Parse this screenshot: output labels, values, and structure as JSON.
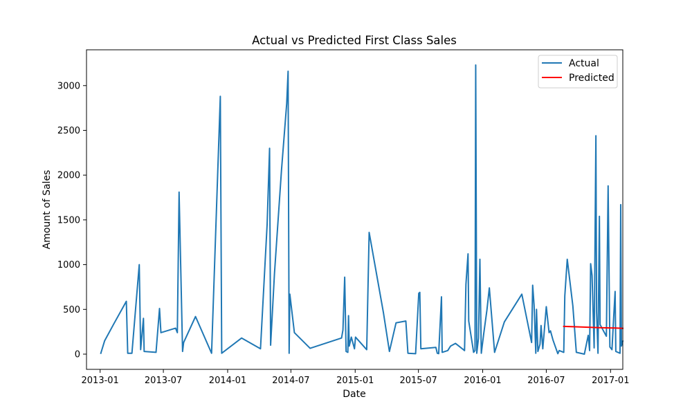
{
  "chart_data": {
    "type": "line",
    "title": "Actual vs Predicted First Class Sales",
    "xlabel": "Date",
    "ylabel": "Amount of Sales",
    "x_axis_type": "date",
    "xlim": [
      "2012-11-23",
      "2017-02-05"
    ],
    "ylim": [
      -170,
      3400
    ],
    "x_ticks": [
      "2013-01-01",
      "2013-07-01",
      "2014-01-01",
      "2014-07-01",
      "2015-01-01",
      "2015-07-01",
      "2016-01-01",
      "2016-07-01",
      "2017-01-01"
    ],
    "x_tick_labels": [
      "2013-01",
      "2013-07",
      "2014-01",
      "2014-07",
      "2015-01",
      "2015-07",
      "2016-01",
      "2016-07",
      "2017-01"
    ],
    "y_ticks": [
      0,
      500,
      1000,
      1500,
      2000,
      2500,
      3000
    ],
    "y_tick_labels": [
      "0",
      "500",
      "1000",
      "1500",
      "2000",
      "2500",
      "3000"
    ],
    "grid": false,
    "legend": {
      "position": "top-right",
      "entries": [
        "Actual",
        "Predicted"
      ]
    },
    "series": [
      {
        "name": "Actual",
        "color": "#1f77b4",
        "points": [
          [
            "2013-01-03",
            10
          ],
          [
            "2013-01-14",
            150
          ],
          [
            "2013-02-08",
            330
          ],
          [
            "2013-03-17",
            590
          ],
          [
            "2013-03-21",
            10
          ],
          [
            "2013-04-02",
            10
          ],
          [
            "2013-04-23",
            1000
          ],
          [
            "2013-04-27",
            50
          ],
          [
            "2013-05-05",
            400
          ],
          [
            "2013-05-07",
            30
          ],
          [
            "2013-06-10",
            20
          ],
          [
            "2013-06-20",
            510
          ],
          [
            "2013-06-24",
            240
          ],
          [
            "2013-08-05",
            290
          ],
          [
            "2013-08-10",
            240
          ],
          [
            "2013-08-15",
            1810
          ],
          [
            "2013-08-25",
            30
          ],
          [
            "2013-08-28",
            130
          ],
          [
            "2013-10-01",
            420
          ],
          [
            "2013-11-16",
            10
          ],
          [
            "2013-12-11",
            2880
          ],
          [
            "2013-12-15",
            10
          ],
          [
            "2014-02-10",
            180
          ],
          [
            "2014-04-05",
            60
          ],
          [
            "2014-04-24",
            1450
          ],
          [
            "2014-05-01",
            2300
          ],
          [
            "2014-05-04",
            100
          ],
          [
            "2014-05-15",
            900
          ],
          [
            "2014-06-04",
            2050
          ],
          [
            "2014-06-19",
            2800
          ],
          [
            "2014-06-23",
            3160
          ],
          [
            "2014-06-26",
            10
          ],
          [
            "2014-06-28",
            670
          ],
          [
            "2014-07-11",
            240
          ],
          [
            "2014-08-25",
            65
          ],
          [
            "2014-11-23",
            180
          ],
          [
            "2014-11-27",
            270
          ],
          [
            "2014-12-02",
            860
          ],
          [
            "2014-12-06",
            30
          ],
          [
            "2014-12-11",
            20
          ],
          [
            "2014-12-13",
            430
          ],
          [
            "2014-12-15",
            90
          ],
          [
            "2014-12-21",
            190
          ],
          [
            "2014-12-30",
            60
          ],
          [
            "2015-01-02",
            190
          ],
          [
            "2015-02-03",
            50
          ],
          [
            "2015-02-10",
            1360
          ],
          [
            "2015-03-23",
            460
          ],
          [
            "2015-04-09",
            30
          ],
          [
            "2015-04-28",
            350
          ],
          [
            "2015-05-26",
            370
          ],
          [
            "2015-06-01",
            10
          ],
          [
            "2015-06-23",
            5
          ],
          [
            "2015-07-02",
            680
          ],
          [
            "2015-07-05",
            690
          ],
          [
            "2015-07-08",
            60
          ],
          [
            "2015-08-20",
            75
          ],
          [
            "2015-08-24",
            10
          ],
          [
            "2015-08-28",
            5
          ],
          [
            "2015-09-05",
            640
          ],
          [
            "2015-09-07",
            20
          ],
          [
            "2015-09-23",
            40
          ],
          [
            "2015-10-01",
            90
          ],
          [
            "2015-10-15",
            120
          ],
          [
            "2015-11-10",
            40
          ],
          [
            "2015-11-14",
            780
          ],
          [
            "2015-11-20",
            1120
          ],
          [
            "2015-11-22",
            370
          ],
          [
            "2015-12-06",
            20
          ],
          [
            "2015-12-10",
            40
          ],
          [
            "2015-12-12",
            3230
          ],
          [
            "2015-12-15",
            10
          ],
          [
            "2015-12-20",
            180
          ],
          [
            "2015-12-24",
            1060
          ],
          [
            "2015-12-28",
            10
          ],
          [
            "2016-01-04",
            230
          ],
          [
            "2016-01-13",
            490
          ],
          [
            "2016-01-20",
            740
          ],
          [
            "2016-02-04",
            20
          ],
          [
            "2016-03-03",
            360
          ],
          [
            "2016-04-22",
            670
          ],
          [
            "2016-05-20",
            130
          ],
          [
            "2016-05-23",
            770
          ],
          [
            "2016-05-27",
            550
          ],
          [
            "2016-06-01",
            10
          ],
          [
            "2016-06-03",
            500
          ],
          [
            "2016-06-07",
            30
          ],
          [
            "2016-06-13",
            110
          ],
          [
            "2016-06-16",
            320
          ],
          [
            "2016-06-21",
            60
          ],
          [
            "2016-07-01",
            530
          ],
          [
            "2016-07-09",
            240
          ],
          [
            "2016-07-13",
            260
          ],
          [
            "2016-07-20",
            160
          ],
          [
            "2016-08-03",
            5
          ],
          [
            "2016-08-07",
            40
          ],
          [
            "2016-08-20",
            20
          ],
          [
            "2016-08-23",
            650
          ],
          [
            "2016-08-30",
            1060
          ],
          [
            "2016-09-15",
            540
          ],
          [
            "2016-09-25",
            20
          ],
          [
            "2016-10-18",
            0
          ],
          [
            "2016-10-29",
            210
          ],
          [
            "2016-11-02",
            40
          ],
          [
            "2016-11-05",
            1010
          ],
          [
            "2016-11-09",
            880
          ],
          [
            "2016-11-15",
            70
          ],
          [
            "2016-11-20",
            2440
          ],
          [
            "2016-11-22",
            470
          ],
          [
            "2016-11-26",
            10
          ],
          [
            "2016-11-30",
            1540
          ],
          [
            "2016-12-02",
            330
          ],
          [
            "2016-12-20",
            200
          ],
          [
            "2016-12-25",
            1880
          ],
          [
            "2016-12-30",
            80
          ],
          [
            "2017-01-05",
            50
          ],
          [
            "2017-01-10",
            420
          ],
          [
            "2017-01-14",
            700
          ],
          [
            "2017-01-16",
            30
          ],
          [
            "2017-01-28",
            10
          ],
          [
            "2017-01-30",
            1670
          ],
          [
            "2017-02-01",
            90
          ],
          [
            "2017-02-05",
            145
          ]
        ]
      },
      {
        "name": "Predicted",
        "color": "#ff0000",
        "points": [
          [
            "2016-08-20",
            310
          ],
          [
            "2016-09-25",
            305
          ],
          [
            "2016-10-29",
            300
          ],
          [
            "2016-11-30",
            296
          ],
          [
            "2016-12-30",
            293
          ],
          [
            "2017-01-28",
            290
          ],
          [
            "2017-02-05",
            288
          ]
        ]
      }
    ]
  }
}
